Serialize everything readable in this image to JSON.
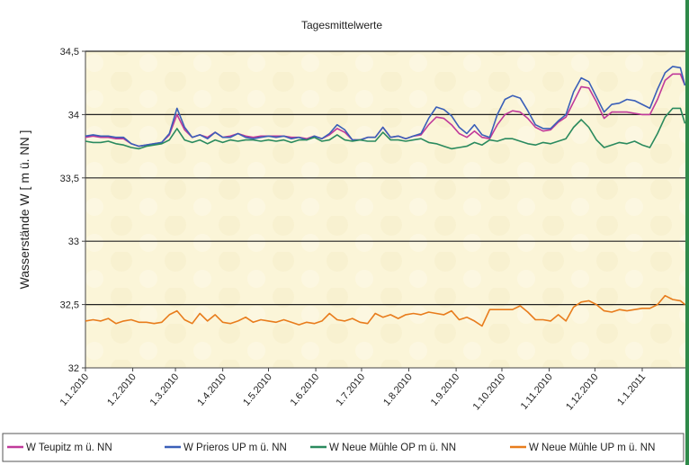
{
  "chart_data": {
    "type": "line",
    "title": "Tagesmittelwerte",
    "xlabel": "",
    "ylabel": "Wasserstände W [ m ü. NN ]",
    "ylim": [
      32,
      34.5
    ],
    "yticks": [
      "32",
      "32,5",
      "33",
      "33,5",
      "34",
      "34,5"
    ],
    "ytick_values": [
      32,
      32.5,
      33,
      33.5,
      34,
      34.5
    ],
    "x_unit": "days since 1.1.2010",
    "xlim": [
      0,
      393
    ],
    "xtick_labels": [
      "1.1.2010",
      "1.2.2010",
      "1.3.2010",
      "1.4.2010",
      "1.5.2010",
      "1.6.2010",
      "1.7.2010",
      "1.8.2010",
      "1.9.2010",
      "1.10.2010",
      "1.11.2010",
      "1.12.2010",
      "1.1.2011"
    ],
    "xtick_days": [
      0,
      31,
      59,
      90,
      120,
      151,
      181,
      212,
      243,
      273,
      304,
      334,
      365
    ],
    "grid": "horizontal",
    "legend_position": "bottom",
    "x": [
      0,
      5,
      10,
      15,
      20,
      25,
      30,
      35,
      40,
      45,
      50,
      55,
      60,
      65,
      70,
      75,
      80,
      85,
      90,
      95,
      100,
      105,
      110,
      115,
      120,
      125,
      130,
      135,
      140,
      145,
      150,
      155,
      160,
      165,
      170,
      175,
      180,
      185,
      190,
      195,
      200,
      205,
      210,
      215,
      220,
      225,
      230,
      235,
      240,
      245,
      250,
      255,
      260,
      265,
      270,
      275,
      280,
      285,
      290,
      295,
      300,
      305,
      310,
      315,
      320,
      325,
      330,
      335,
      340,
      345,
      350,
      355,
      360,
      365,
      370,
      375,
      380,
      385,
      390,
      393
    ],
    "series": [
      {
        "name": "W Teupitz m ü. NN",
        "color": "#c0399a",
        "values": [
          33.82,
          33.83,
          33.82,
          33.82,
          33.81,
          33.81,
          33.77,
          33.75,
          33.76,
          33.77,
          33.78,
          33.84,
          34.0,
          33.88,
          33.82,
          33.84,
          33.82,
          33.86,
          33.82,
          33.83,
          33.85,
          33.83,
          33.82,
          33.83,
          33.83,
          33.83,
          33.83,
          33.82,
          33.82,
          33.81,
          33.83,
          33.81,
          33.84,
          33.89,
          33.86,
          33.8,
          33.8,
          33.82,
          33.82,
          33.9,
          33.82,
          33.83,
          33.81,
          33.83,
          33.84,
          33.92,
          33.98,
          33.97,
          33.92,
          33.85,
          33.82,
          33.87,
          33.82,
          33.81,
          33.92,
          34.0,
          34.03,
          34.02,
          33.97,
          33.9,
          33.87,
          33.88,
          33.94,
          33.98,
          34.1,
          34.22,
          34.21,
          34.1,
          33.97,
          34.02,
          34.02,
          34.02,
          34.01,
          34.0,
          34.0,
          34.12,
          34.27,
          34.32,
          34.32,
          34.23
        ]
      },
      {
        "name": "W Prieros UP m ü. NN",
        "color": "#3a5fb8",
        "values": [
          33.83,
          33.84,
          33.83,
          33.83,
          33.82,
          33.82,
          33.77,
          33.75,
          33.76,
          33.77,
          33.78,
          33.85,
          34.05,
          33.9,
          33.82,
          33.84,
          33.81,
          33.86,
          33.82,
          33.82,
          33.85,
          33.82,
          33.81,
          33.82,
          33.83,
          33.82,
          33.83,
          33.81,
          33.82,
          33.8,
          33.83,
          33.81,
          33.85,
          33.92,
          33.88,
          33.8,
          33.8,
          33.82,
          33.82,
          33.9,
          33.82,
          33.83,
          33.81,
          33.83,
          33.85,
          33.97,
          34.06,
          34.04,
          33.99,
          33.9,
          33.85,
          33.92,
          33.84,
          33.82,
          34.0,
          34.12,
          34.15,
          34.13,
          34.03,
          33.92,
          33.89,
          33.89,
          33.95,
          34.0,
          34.18,
          34.29,
          34.26,
          34.14,
          34.02,
          34.08,
          34.09,
          34.12,
          34.11,
          34.08,
          34.05,
          34.2,
          34.33,
          34.38,
          34.37,
          34.23
        ]
      },
      {
        "name": "W Neue Mühle OP m ü. NN",
        "color": "#2a8a5e",
        "values": [
          33.79,
          33.78,
          33.78,
          33.79,
          33.77,
          33.76,
          33.74,
          33.73,
          33.75,
          33.76,
          33.77,
          33.8,
          33.89,
          33.8,
          33.78,
          33.8,
          33.77,
          33.8,
          33.78,
          33.8,
          33.79,
          33.8,
          33.8,
          33.79,
          33.8,
          33.79,
          33.8,
          33.78,
          33.8,
          33.8,
          33.82,
          33.79,
          33.8,
          33.84,
          33.8,
          33.79,
          33.8,
          33.79,
          33.79,
          33.86,
          33.8,
          33.8,
          33.79,
          33.8,
          33.81,
          33.78,
          33.77,
          33.75,
          33.73,
          33.74,
          33.75,
          33.78,
          33.76,
          33.8,
          33.79,
          33.81,
          33.81,
          33.79,
          33.77,
          33.76,
          33.78,
          33.77,
          33.79,
          33.81,
          33.9,
          33.96,
          33.9,
          33.8,
          33.74,
          33.76,
          33.78,
          33.77,
          33.79,
          33.76,
          33.74,
          33.85,
          33.98,
          34.05,
          34.05,
          33.93
        ]
      },
      {
        "name": "W Neue Mühle UP m ü. NN",
        "color": "#e87c1c",
        "values": [
          32.37,
          32.38,
          32.37,
          32.39,
          32.35,
          32.37,
          32.38,
          32.36,
          32.36,
          32.35,
          32.36,
          32.42,
          32.45,
          32.38,
          32.35,
          32.43,
          32.37,
          32.42,
          32.36,
          32.35,
          32.37,
          32.4,
          32.36,
          32.38,
          32.37,
          32.36,
          32.38,
          32.36,
          32.34,
          32.36,
          32.35,
          32.37,
          32.43,
          32.38,
          32.37,
          32.39,
          32.36,
          32.35,
          32.43,
          32.4,
          32.42,
          32.39,
          32.42,
          32.43,
          32.42,
          32.44,
          32.43,
          32.42,
          32.45,
          32.38,
          32.4,
          32.37,
          32.33,
          32.46,
          32.46,
          32.46,
          32.46,
          32.49,
          32.44,
          32.38,
          32.38,
          32.37,
          32.42,
          32.37,
          32.48,
          32.52,
          32.53,
          32.5,
          32.45,
          32.44,
          32.46,
          32.45,
          32.46,
          32.47,
          32.47,
          32.5,
          32.57,
          32.54,
          32.53,
          32.5
        ]
      }
    ]
  }
}
